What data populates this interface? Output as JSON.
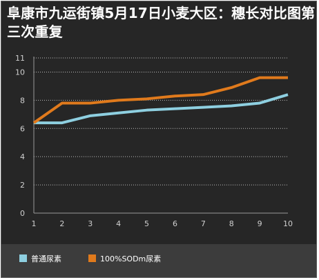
{
  "title": "阜康市九运街镇5月17日小麦大区：穗长对比图第三次重复",
  "chart_data": {
    "type": "line",
    "title": "阜康市九运街镇5月17日小麦大区：穗长对比图第三次重复",
    "x": [
      1,
      2,
      3,
      4,
      5,
      6,
      7,
      8,
      9,
      10
    ],
    "xlabel": "",
    "ylabel": "",
    "y_ticks": [
      0,
      2,
      4,
      6,
      8,
      10,
      11
    ],
    "ylim": [
      0,
      11
    ],
    "grid": "horizontal dotted",
    "legend_position": "bottom-left",
    "series": [
      {
        "name": "普通尿素",
        "color": "#8ecfe0",
        "values": [
          6.4,
          6.4,
          6.9,
          7.1,
          7.3,
          7.4,
          7.5,
          7.6,
          7.8,
          8.4
        ]
      },
      {
        "name": "100%SODm尿素",
        "color": "#e07a1c",
        "values": [
          6.4,
          7.8,
          7.8,
          8.0,
          8.1,
          8.3,
          8.4,
          8.9,
          9.6,
          9.6
        ]
      }
    ]
  }
}
